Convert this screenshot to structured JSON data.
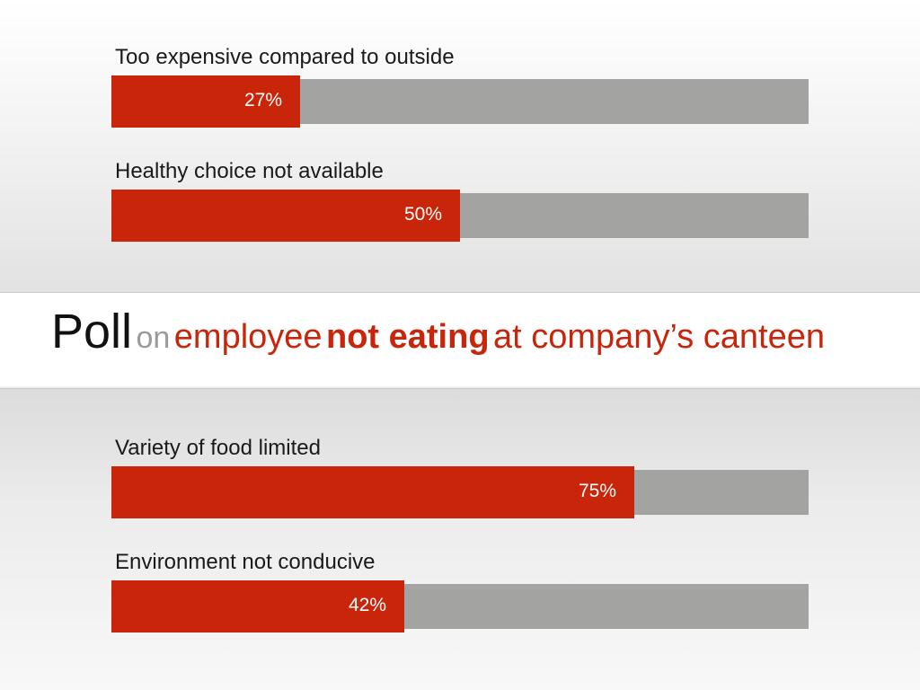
{
  "title": {
    "word1": "Poll",
    "word2": "on",
    "word3": "employee",
    "word4": "not eating",
    "word5": "at company’s canteen"
  },
  "colors": {
    "accent": "#c8250a",
    "track": "#a3a4a2"
  },
  "chart_data": {
    "type": "bar",
    "orientation": "horizontal",
    "xlim": [
      0,
      100
    ],
    "grid": false,
    "categories": [
      "Too expensive compared to outside",
      "Healthy choice not available",
      "Variety of food limited",
      "Environment not conducive"
    ],
    "values": [
      27,
      50,
      75,
      42
    ],
    "labels": [
      "27%",
      "50%",
      "75%",
      "42%"
    ]
  }
}
